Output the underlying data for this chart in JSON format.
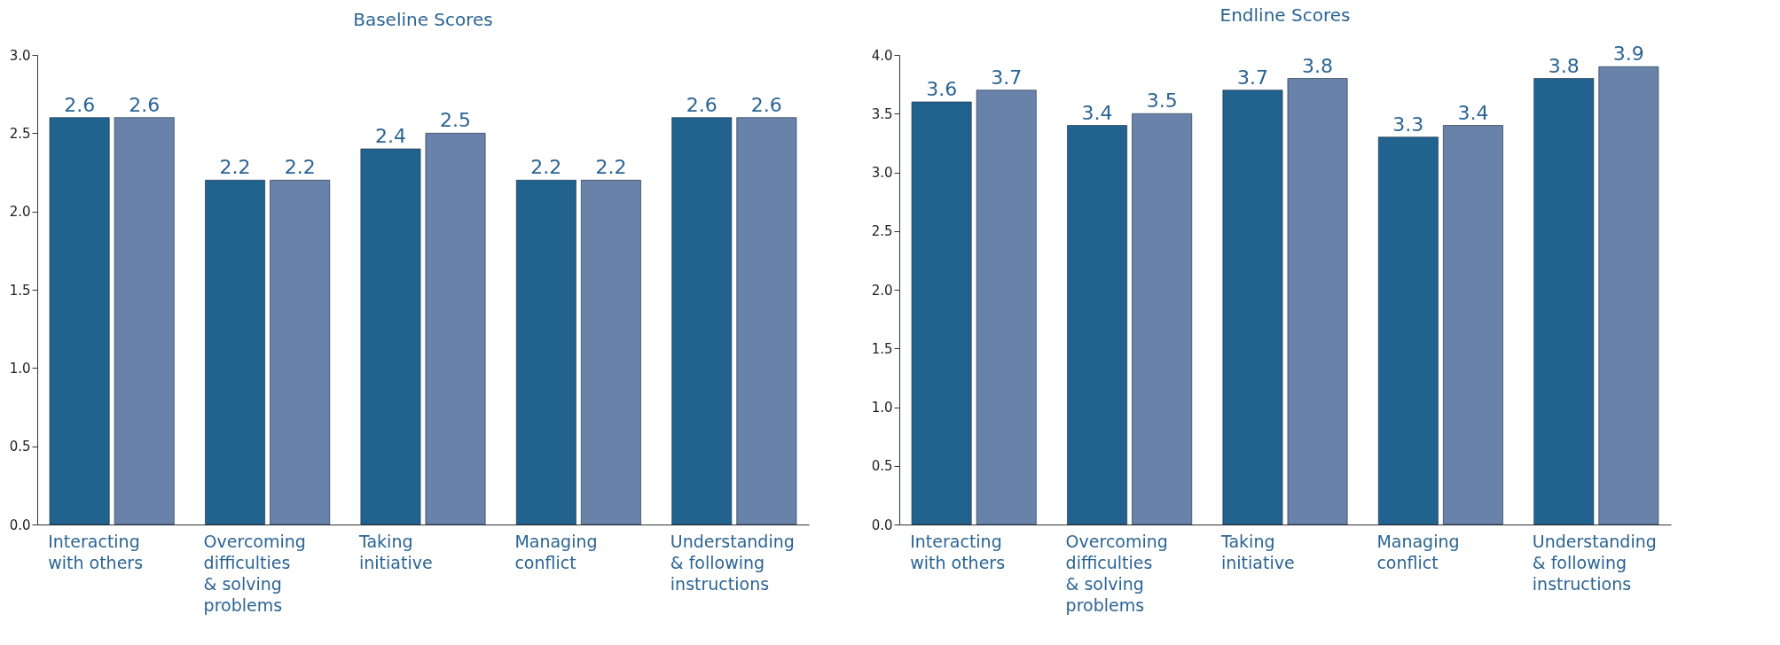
{
  "chart_data": [
    {
      "type": "bar",
      "title": "Baseline Scores",
      "categories": [
        "Interacting with others",
        "Overcoming difficulties & solving problems",
        "Taking initiative",
        "Managing conflict",
        "Understanding & following instructions"
      ],
      "series": [
        {
          "color": "#22628f",
          "values": [
            2.6,
            2.2,
            2.4,
            2.2,
            2.6
          ]
        },
        {
          "color": "#6882aa",
          "values": [
            2.6,
            2.2,
            2.5,
            2.2,
            2.6
          ]
        }
      ],
      "ylim": [
        0,
        3
      ],
      "yticks": [
        {
          "value": 0,
          "label": "0.0"
        },
        {
          "value": 0.5,
          "label": "0.5"
        },
        {
          "value": 1,
          "label": "1.0"
        },
        {
          "value": 1.5,
          "label": "1.5"
        },
        {
          "value": 2,
          "label": "2.0"
        },
        {
          "value": 2.5,
          "label": "2.5"
        },
        {
          "value": 3,
          "label": "3.0"
        }
      ],
      "data_labels": true
    },
    {
      "type": "bar",
      "title": "Endline Scores",
      "categories": [
        "Interacting with others",
        "Overcoming difficulties & solving problems",
        "Taking initiative",
        "Managing conflict",
        "Understanding & following instructions"
      ],
      "series": [
        {
          "color": "#22628f",
          "values": [
            3.6,
            3.4,
            3.7,
            3.3,
            3.8
          ]
        },
        {
          "color": "#6882aa",
          "values": [
            3.7,
            3.5,
            3.8,
            3.4,
            3.9
          ]
        }
      ],
      "ylim": [
        0,
        4
      ],
      "yticks": [
        {
          "value": 0,
          "label": "0.0"
        },
        {
          "value": 0.5,
          "label": "0.5"
        },
        {
          "value": 1,
          "label": "1.0"
        },
        {
          "value": 1.5,
          "label": "1.5"
        },
        {
          "value": 2,
          "label": "2.0"
        },
        {
          "value": 2.5,
          "label": "2.5"
        },
        {
          "value": 3,
          "label": "3.0"
        },
        {
          "value": 3.5,
          "label": "3.5"
        },
        {
          "value": 4,
          "label": "4.0"
        }
      ],
      "data_labels": true
    }
  ]
}
